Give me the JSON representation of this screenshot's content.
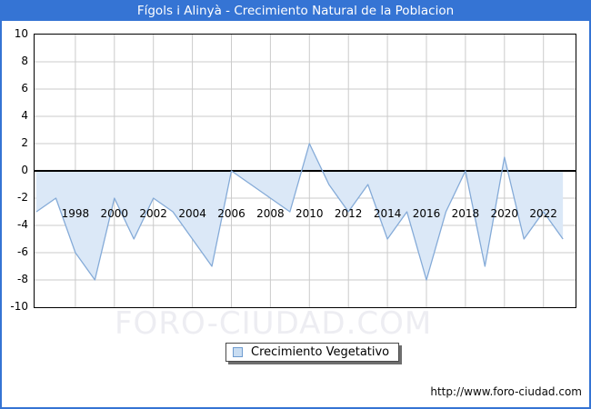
{
  "header": {
    "title": "Fígols i Alinyà - Crecimiento Natural de la Poblacion"
  },
  "chart_data": {
    "type": "area",
    "title": "Fígols i Alinyà - Crecimiento Natural de la Poblacion",
    "series_name": "Crecimiento Vegetativo",
    "x": [
      1996,
      1997,
      1998,
      1999,
      2000,
      2001,
      2002,
      2003,
      2004,
      2005,
      2006,
      2007,
      2008,
      2009,
      2010,
      2011,
      2012,
      2013,
      2014,
      2015,
      2016,
      2017,
      2018,
      2019,
      2020,
      2021,
      2022,
      2023
    ],
    "values": [
      -3,
      -2,
      -6,
      -8,
      -2,
      -5,
      -2,
      -3,
      -5,
      -7,
      0,
      -1,
      -2,
      -3,
      2,
      -1,
      -3,
      -1,
      -5,
      -3,
      -8,
      -3,
      0,
      -7,
      1,
      -5,
      -3,
      -5
    ],
    "ylim": [
      -10,
      10
    ],
    "y_ticks": [
      10,
      8,
      6,
      4,
      2,
      0,
      -2,
      -4,
      -6,
      -8,
      -10
    ],
    "x_ticks": [
      1998,
      2000,
      2002,
      2004,
      2006,
      2008,
      2010,
      2012,
      2014,
      2016,
      2018,
      2020,
      2022
    ],
    "grid": true,
    "legend_position": "bottom",
    "colors": {
      "header_bg": "#3574d4",
      "outer_border": "#3574d4",
      "area_fill": "#dbe8f7",
      "series_line": "#85abd8",
      "grid": "#cbcbcb",
      "zero_line": "#000000",
      "watermark": "#ededf2"
    }
  },
  "legend": {
    "label": "Crecimiento Vegetativo"
  },
  "watermark": {
    "text": "FORO-CIUDAD.COM"
  },
  "footer": {
    "url": "http://www.foro-ciudad.com"
  }
}
